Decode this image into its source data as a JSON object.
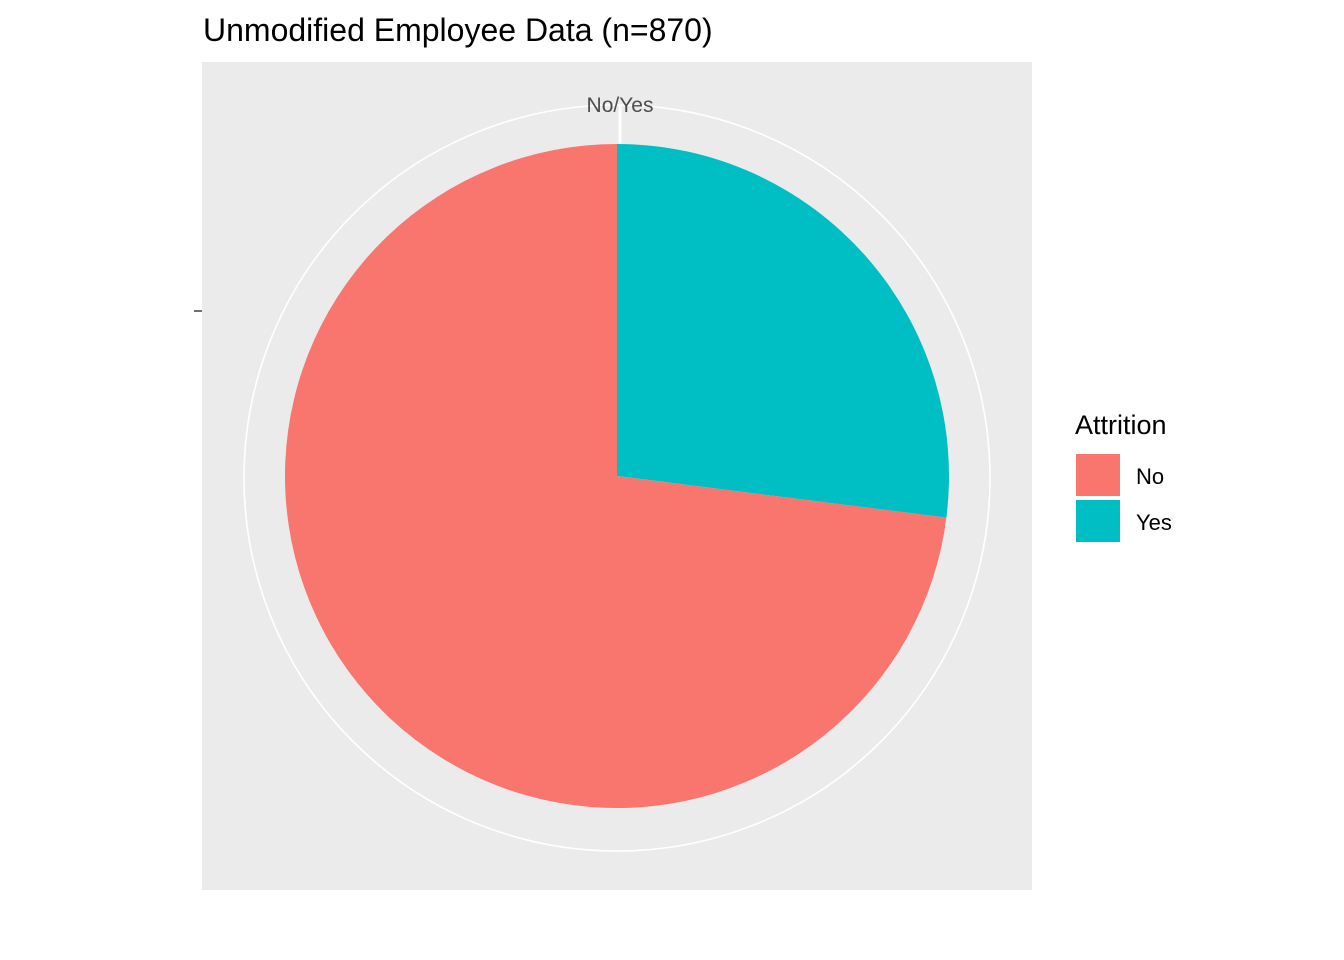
{
  "chart_data": {
    "type": "pie",
    "title": "Unmodified Employee Data (n=870)",
    "theta_tick_label": "No/Yes",
    "legend": {
      "title": "Attrition",
      "position": "right"
    },
    "slices": [
      {
        "label": "No",
        "value": 0.73,
        "color": "#F8766D"
      },
      {
        "label": "Yes",
        "value": 0.27,
        "color": "#00BFC4"
      }
    ],
    "panel_background": "#EBEBEB",
    "grid": true
  }
}
